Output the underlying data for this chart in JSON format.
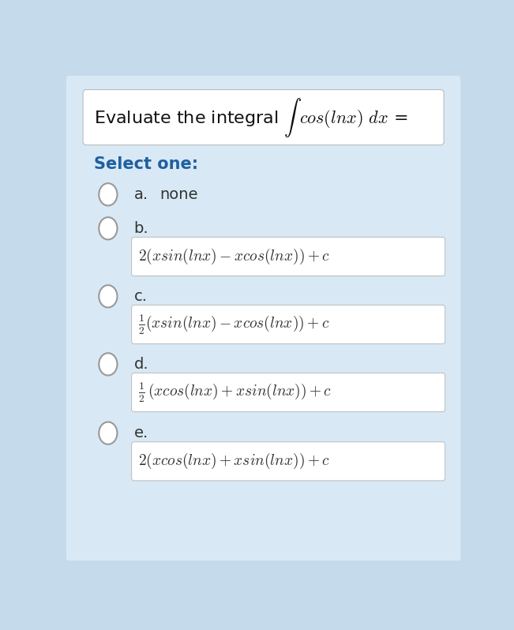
{
  "background_color": "#c5daea",
  "card_color": "#d8e9f5",
  "title_box_color": "#ffffff",
  "answer_box_color": "#ffffff",
  "fig_width": 6.51,
  "fig_height": 7.98,
  "title_text": "Evaluate the integral $\\int$ $\\mathit{cos(lnx)}$ $\\mathit{dx}$ =",
  "select_text": "Select one:",
  "options": [
    {
      "label": "a.",
      "inline": "none",
      "formula": null,
      "has_box": false
    },
    {
      "label": "b.",
      "inline": null,
      "formula": "$2(\\mathit{xsin(lnx)} - \\mathit{xcos(lnx)}) + c$",
      "has_box": true
    },
    {
      "label": "c.",
      "inline": null,
      "formula": "$\\frac{1}{2}(\\mathit{xsin(lnx)} - \\mathit{xcos(lnx)}) + c$",
      "has_box": true
    },
    {
      "label": "d.",
      "inline": null,
      "formula": "$\\frac{1}{2}\\,(\\mathit{xcos(lnx)} + \\mathit{xsin(lnx)}) + c$",
      "has_box": true
    },
    {
      "label": "e.",
      "inline": null,
      "formula": "$2(\\mathit{xcos(lnx)} + \\mathit{xsin(lnx)}) + c$",
      "has_box": true
    }
  ]
}
